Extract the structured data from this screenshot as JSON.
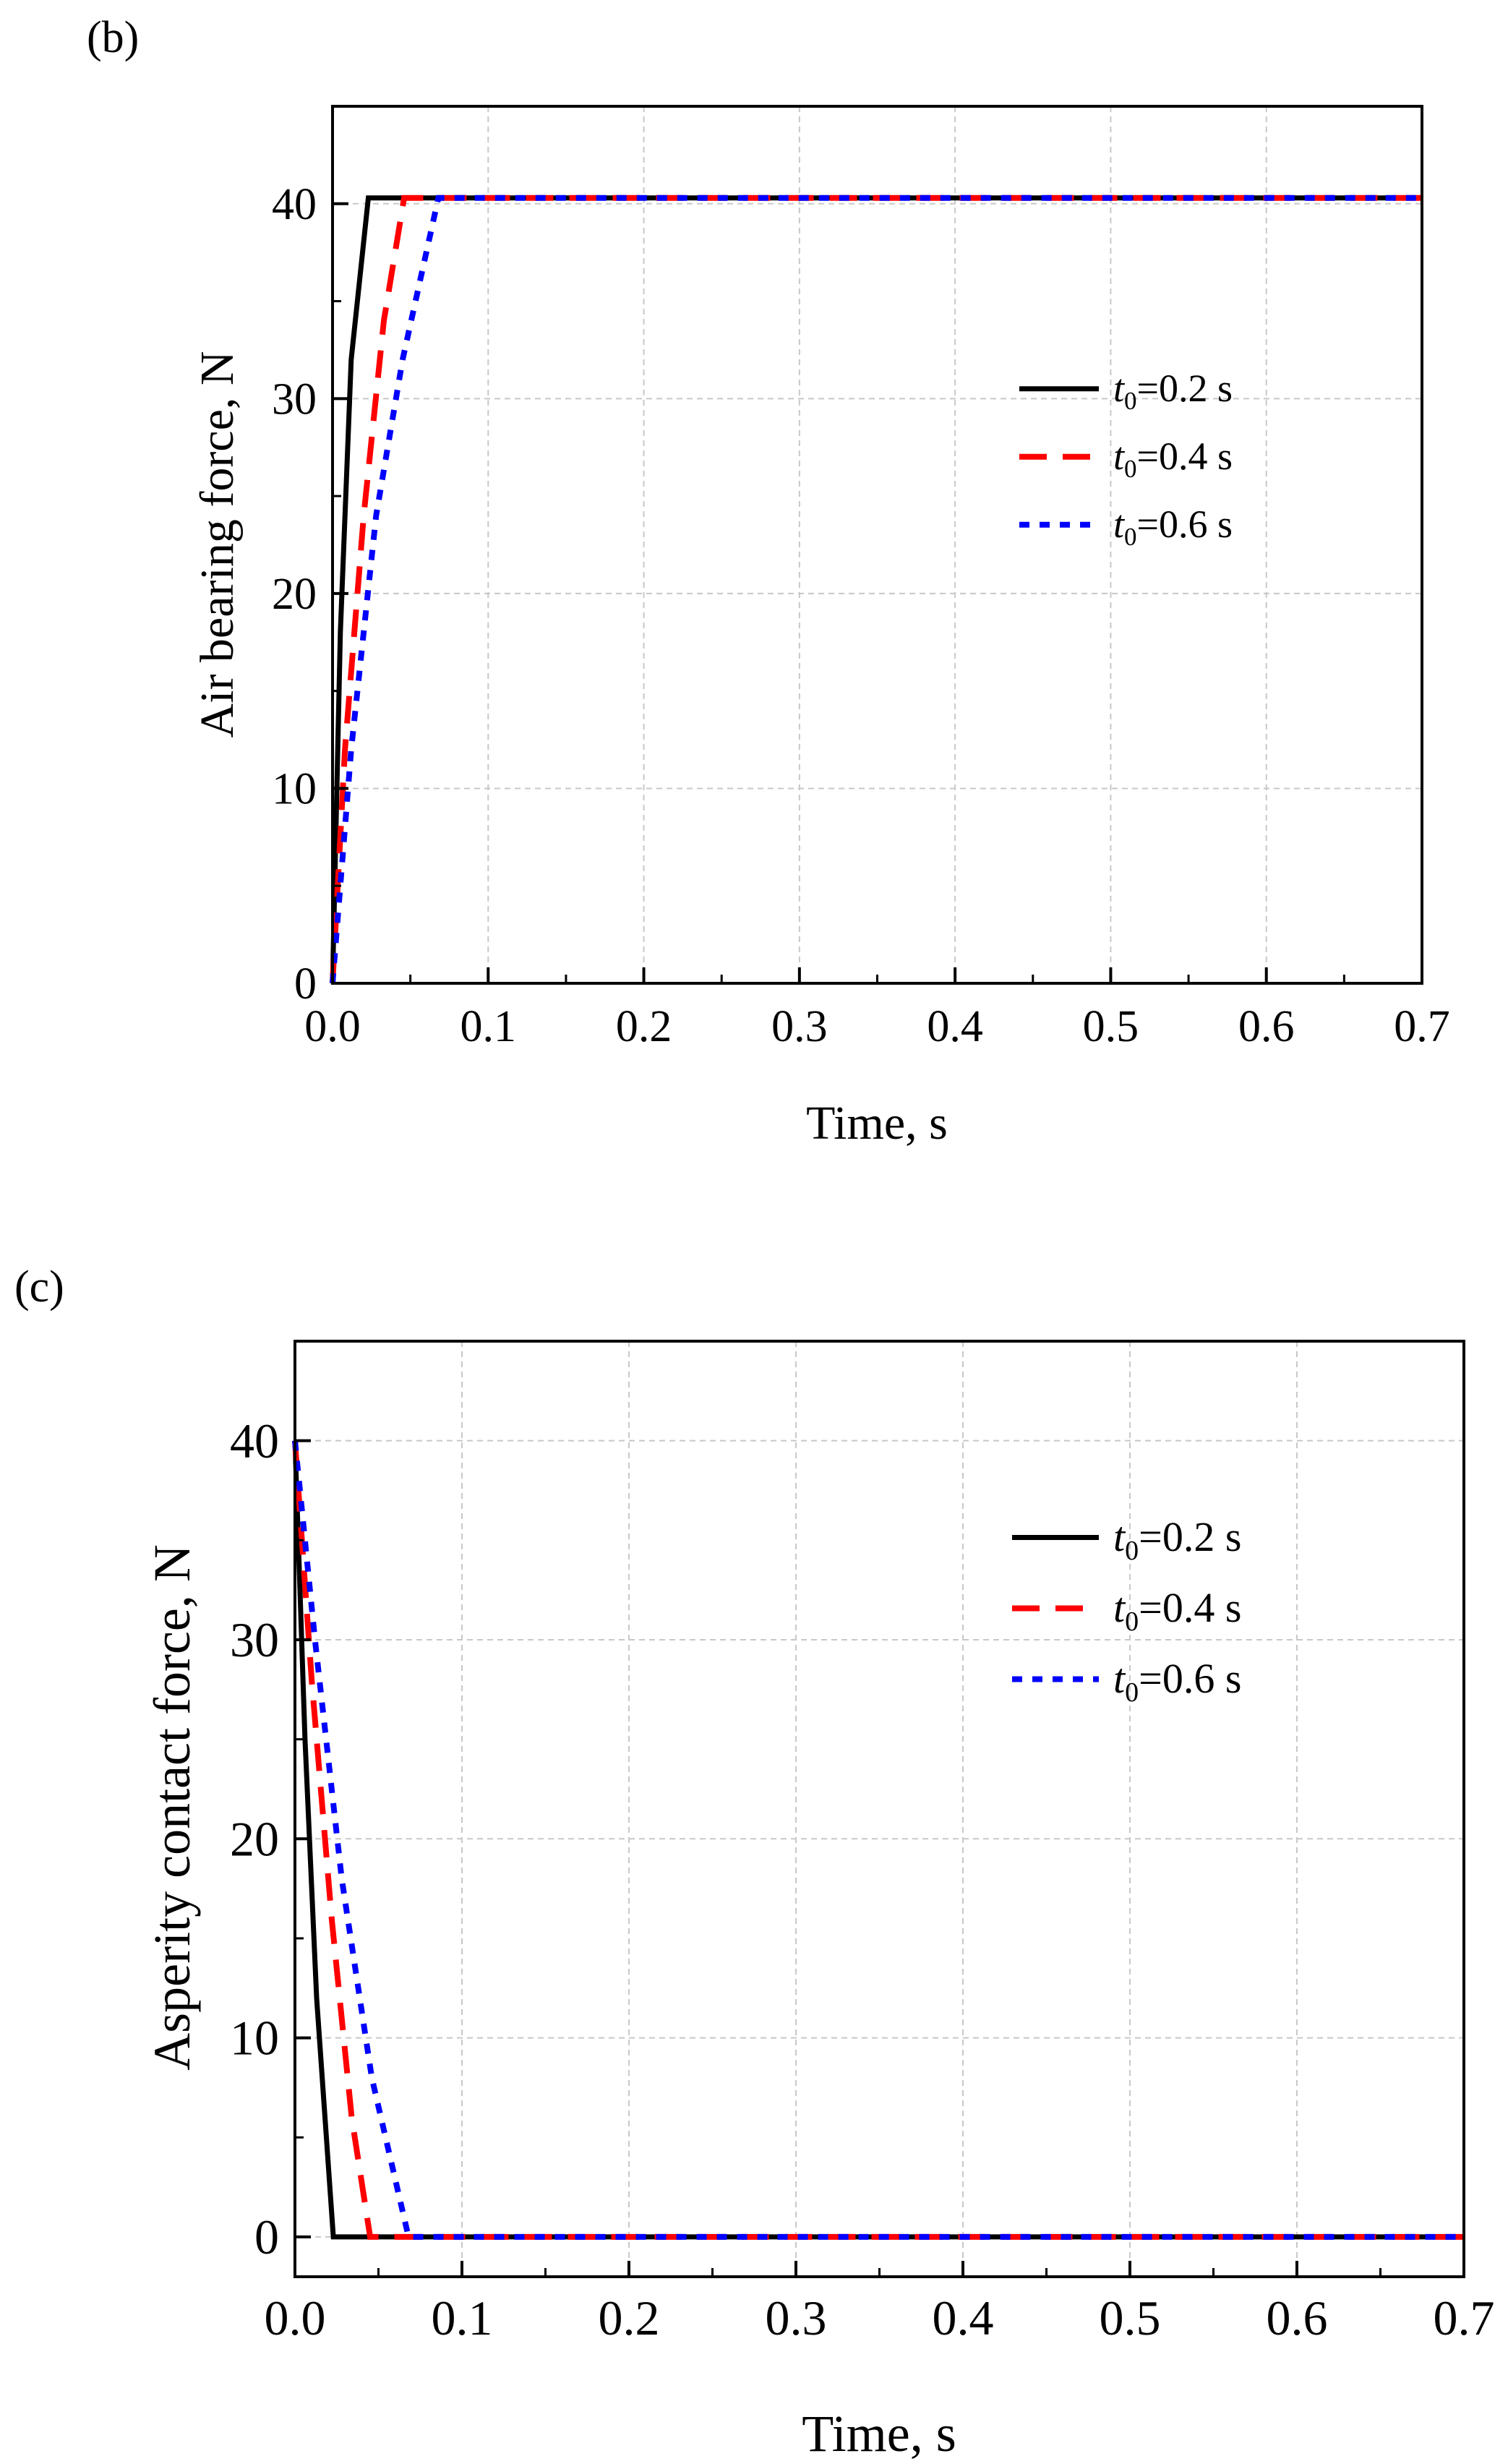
{
  "figure": {
    "panels": [
      {
        "panel_label": "(b)",
        "y_axis_label": "Air bearing force, N",
        "x_axis_label": "Time, s"
      },
      {
        "panel_label": "(c)",
        "y_axis_label": "Asperity contact force, N",
        "x_axis_label": "Time, s"
      }
    ]
  },
  "chart_data": [
    {
      "type": "line",
      "panel": "(b)",
      "title": "",
      "xlabel": "Time, s",
      "ylabel": "Air bearing force, N",
      "xlim": [
        0.0,
        0.7
      ],
      "ylim": [
        0,
        45
      ],
      "xticks": [
        "0.0",
        "0.1",
        "0.2",
        "0.3",
        "0.4",
        "0.5",
        "0.6",
        "0.7"
      ],
      "xtick_values": [
        0.0,
        0.1,
        0.2,
        0.3,
        0.4,
        0.5,
        0.6,
        0.7
      ],
      "yticks": [
        "0",
        "10",
        "20",
        "30",
        "40"
      ],
      "ytick_values": [
        0,
        10,
        20,
        30,
        40
      ],
      "grid": true,
      "legend_position": "right-middle",
      "series": [
        {
          "name": "t0=0.2 s",
          "legend_italic": "t",
          "legend_sub": "0",
          "legend_rest": "=0.2 s",
          "style": "solid",
          "color": "#000000",
          "x": [
            0.0,
            0.005,
            0.012,
            0.023,
            0.7
          ],
          "y": [
            0,
            18,
            32,
            40.3,
            40.3
          ]
        },
        {
          "name": "t0=0.4 s",
          "legend_italic": "t",
          "legend_sub": "0",
          "legend_rest": "=0.4 s",
          "style": "dashed",
          "color": "#ff0000",
          "x": [
            0.0,
            0.008,
            0.02,
            0.033,
            0.046,
            0.7
          ],
          "y": [
            0,
            12,
            24,
            34,
            40.3,
            40.3
          ]
        },
        {
          "name": "t0=0.6 s",
          "legend_italic": "t",
          "legend_sub": "0",
          "legend_rest": "=0.6 s",
          "style": "dotted",
          "color": "#0000ff",
          "x": [
            0.0,
            0.012,
            0.028,
            0.045,
            0.068,
            0.7
          ],
          "y": [
            0,
            12,
            24,
            32,
            40.3,
            40.3
          ]
        }
      ]
    },
    {
      "type": "line",
      "panel": "(c)",
      "title": "",
      "xlabel": "Time, s",
      "ylabel": "Asperity contact force, N",
      "xlim": [
        0.0,
        0.7
      ],
      "ylim": [
        -2,
        45
      ],
      "xticks": [
        "0.0",
        "0.1",
        "0.2",
        "0.3",
        "0.4",
        "0.5",
        "0.6",
        "0.7"
      ],
      "xtick_values": [
        0.0,
        0.1,
        0.2,
        0.3,
        0.4,
        0.5,
        0.6,
        0.7
      ],
      "yticks": [
        "0",
        "10",
        "20",
        "30",
        "40"
      ],
      "ytick_values": [
        0,
        10,
        20,
        30,
        40
      ],
      "grid": true,
      "legend_position": "right-upper",
      "series": [
        {
          "name": "t0=0.2 s",
          "legend_italic": "t",
          "legend_sub": "0",
          "legend_rest": "=0.2 s",
          "style": "solid",
          "color": "#000000",
          "x": [
            0.0,
            0.006,
            0.013,
            0.023,
            0.7
          ],
          "y": [
            40,
            25,
            12,
            0,
            0
          ]
        },
        {
          "name": "t0=0.4 s",
          "legend_italic": "t",
          "legend_sub": "0",
          "legend_rest": "=0.4 s",
          "style": "dashed",
          "color": "#ff0000",
          "x": [
            0.0,
            0.01,
            0.022,
            0.034,
            0.045,
            0.7
          ],
          "y": [
            40,
            28,
            16,
            6,
            0,
            0
          ]
        },
        {
          "name": "t0=0.6 s",
          "legend_italic": "t",
          "legend_sub": "0",
          "legend_rest": "=0.6 s",
          "style": "dotted",
          "color": "#0000ff",
          "x": [
            0.0,
            0.012,
            0.028,
            0.046,
            0.068,
            0.7
          ],
          "y": [
            40,
            30,
            18,
            8,
            0,
            0
          ]
        }
      ]
    }
  ]
}
